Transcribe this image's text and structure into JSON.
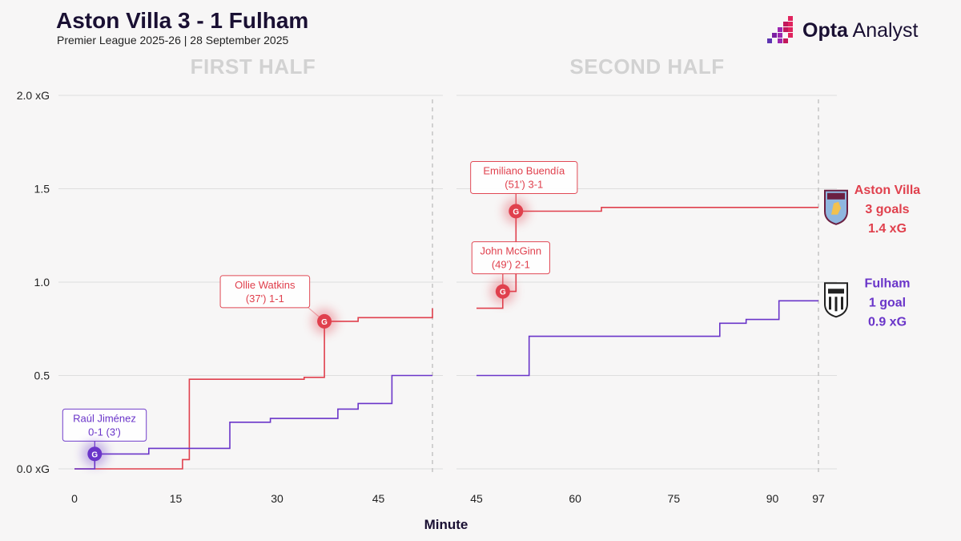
{
  "header": {
    "title": "Aston Villa 3 - 1 Fulham",
    "subtitle": "Premier League 2025-26 | 28 September 2025"
  },
  "brand": {
    "bold": "Opta",
    "rest": " Analyst"
  },
  "colors": {
    "villa": "#e0404d",
    "fulham": "#6a35c9",
    "grid": "#dedede",
    "muted": "#d2d2d2"
  },
  "chart_data": {
    "type": "line",
    "xlabel": "Minute",
    "yticks": [
      "0.0 xG",
      "0.5",
      "1.0",
      "1.5",
      "2.0 xG"
    ],
    "ylim": [
      0,
      2
    ],
    "halves": [
      {
        "title": "FIRST HALF",
        "xlim": [
          0,
          53
        ],
        "xticks": [
          0,
          15,
          30,
          45
        ],
        "end": 53
      },
      {
        "title": "SECOND HALF",
        "xlim": [
          45,
          97
        ],
        "xticks": [
          45,
          60,
          75,
          90,
          97
        ],
        "end": 97
      }
    ],
    "series": [
      {
        "name": "Aston Villa",
        "team_key": "villa",
        "first_half": [
          [
            0,
            0
          ],
          [
            16,
            0
          ],
          [
            16,
            0.05
          ],
          [
            17,
            0.05
          ],
          [
            17,
            0.48
          ],
          [
            34,
            0.48
          ],
          [
            34,
            0.49
          ],
          [
            37,
            0.49
          ],
          [
            37,
            0.79
          ],
          [
            42,
            0.79
          ],
          [
            42,
            0.81
          ],
          [
            53,
            0.81
          ],
          [
            53,
            0.86
          ]
        ],
        "second_half": [
          [
            45,
            0.86
          ],
          [
            49,
            0.86
          ],
          [
            49,
            0.95
          ],
          [
            51,
            0.95
          ],
          [
            51,
            1.38
          ],
          [
            64,
            1.38
          ],
          [
            64,
            1.4
          ],
          [
            97,
            1.4
          ]
        ],
        "summary": [
          "Aston Villa",
          "3 goals",
          "1.4 xG"
        ]
      },
      {
        "name": "Fulham",
        "team_key": "fulham",
        "first_half": [
          [
            0,
            0
          ],
          [
            3,
            0
          ],
          [
            3,
            0.08
          ],
          [
            11,
            0.08
          ],
          [
            11,
            0.11
          ],
          [
            23,
            0.11
          ],
          [
            23,
            0.25
          ],
          [
            29,
            0.25
          ],
          [
            29,
            0.27
          ],
          [
            39,
            0.27
          ],
          [
            39,
            0.32
          ],
          [
            42,
            0.32
          ],
          [
            42,
            0.35
          ],
          [
            47,
            0.35
          ],
          [
            47,
            0.5
          ],
          [
            53,
            0.5
          ]
        ],
        "second_half": [
          [
            45,
            0.5
          ],
          [
            53,
            0.5
          ],
          [
            53,
            0.71
          ],
          [
            82,
            0.71
          ],
          [
            82,
            0.78
          ],
          [
            86,
            0.78
          ],
          [
            86,
            0.8
          ],
          [
            91,
            0.8
          ],
          [
            91,
            0.9
          ],
          [
            97,
            0.9
          ]
        ],
        "summary": [
          "Fulham",
          "1 goal",
          "0.9 xG"
        ]
      }
    ],
    "goals": [
      {
        "half": 0,
        "minute": 3,
        "xg": 0.08,
        "team_key": "fulham",
        "label": [
          "Raúl Jiménez",
          "0-1 (3')"
        ],
        "box": "left"
      },
      {
        "half": 0,
        "minute": 37,
        "xg": 0.79,
        "team_key": "villa",
        "label": [
          "Ollie Watkins",
          "(37') 1-1"
        ],
        "box": "upleft"
      },
      {
        "half": 1,
        "minute": 49,
        "xg": 0.95,
        "team_key": "villa",
        "label": [
          "John McGinn",
          "(49') 2-1"
        ],
        "box": "up"
      },
      {
        "half": 1,
        "minute": 51,
        "xg": 1.38,
        "team_key": "villa",
        "label": [
          "Emiliano Buendía",
          "(51') 3-1"
        ],
        "box": "up"
      }
    ],
    "goal_marker": "G"
  }
}
